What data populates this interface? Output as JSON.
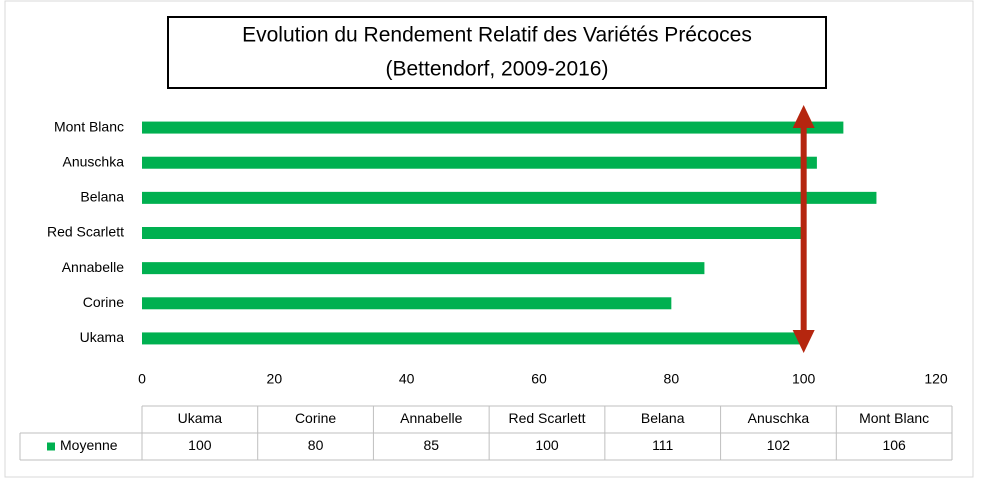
{
  "chart_data": {
    "type": "bar",
    "orientation": "horizontal",
    "title": [
      "Evolution du Rendement Relatif des Variétés Précoces",
      "(Bettendorf, 2009-2016)"
    ],
    "categories": [
      "Ukama",
      "Corine",
      "Annabelle",
      "Red Scarlett",
      "Belana",
      "Anuschka",
      "Mont Blanc"
    ],
    "series": [
      {
        "name": "Moyenne",
        "color": "#00b050",
        "values": [
          100,
          80,
          85,
          100,
          111,
          102,
          106
        ]
      }
    ],
    "xlim": [
      0,
      120
    ],
    "xticks": [
      0,
      20,
      40,
      60,
      80,
      100,
      120
    ],
    "reference_line": {
      "value": 100,
      "color": "#b5260f"
    },
    "data_table": true
  }
}
